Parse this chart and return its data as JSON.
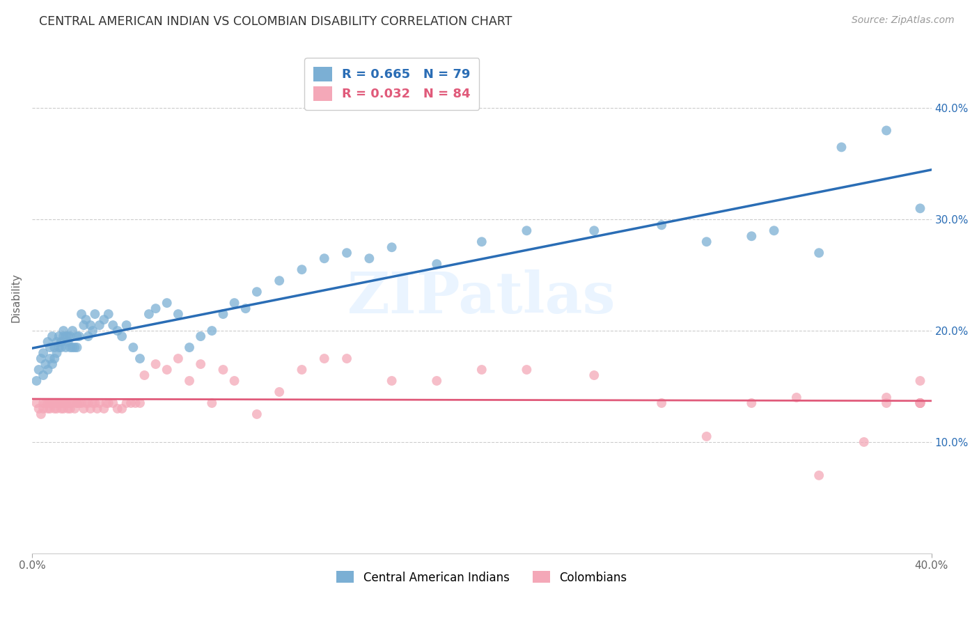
{
  "title": "CENTRAL AMERICAN INDIAN VS COLOMBIAN DISABILITY CORRELATION CHART",
  "source": "Source: ZipAtlas.com",
  "ylabel": "Disability",
  "xlim": [
    0.0,
    0.4
  ],
  "ylim": [
    0.0,
    0.46
  ],
  "xtick_vals": [
    0.0,
    0.4
  ],
  "xtick_labels": [
    "0.0%",
    "40.0%"
  ],
  "ytick_vals": [
    0.1,
    0.2,
    0.3,
    0.4
  ],
  "ytick_labels": [
    "10.0%",
    "20.0%",
    "30.0%",
    "40.0%"
  ],
  "blue_color": "#7bafd4",
  "blue_line_color": "#2a6db5",
  "pink_color": "#f4a8b8",
  "pink_line_color": "#e05a7a",
  "r_blue": 0.665,
  "n_blue": 79,
  "r_pink": 0.032,
  "n_pink": 84,
  "watermark_text": "ZIPatlas",
  "blue_scatter_x": [
    0.002,
    0.003,
    0.004,
    0.005,
    0.005,
    0.006,
    0.007,
    0.007,
    0.008,
    0.008,
    0.009,
    0.009,
    0.01,
    0.01,
    0.011,
    0.011,
    0.012,
    0.012,
    0.013,
    0.013,
    0.014,
    0.014,
    0.015,
    0.015,
    0.016,
    0.016,
    0.017,
    0.017,
    0.018,
    0.018,
    0.019,
    0.02,
    0.02,
    0.021,
    0.022,
    0.023,
    0.024,
    0.025,
    0.026,
    0.027,
    0.028,
    0.03,
    0.032,
    0.034,
    0.036,
    0.038,
    0.04,
    0.042,
    0.045,
    0.048,
    0.052,
    0.055,
    0.06,
    0.065,
    0.07,
    0.075,
    0.08,
    0.085,
    0.09,
    0.095,
    0.1,
    0.11,
    0.12,
    0.13,
    0.14,
    0.15,
    0.16,
    0.18,
    0.2,
    0.22,
    0.25,
    0.28,
    0.3,
    0.32,
    0.33,
    0.35,
    0.36,
    0.38,
    0.395
  ],
  "blue_scatter_y": [
    0.155,
    0.165,
    0.175,
    0.16,
    0.18,
    0.17,
    0.165,
    0.19,
    0.175,
    0.185,
    0.17,
    0.195,
    0.175,
    0.185,
    0.19,
    0.18,
    0.195,
    0.185,
    0.19,
    0.185,
    0.2,
    0.195,
    0.195,
    0.185,
    0.19,
    0.195,
    0.185,
    0.195,
    0.185,
    0.2,
    0.185,
    0.195,
    0.185,
    0.195,
    0.215,
    0.205,
    0.21,
    0.195,
    0.205,
    0.2,
    0.215,
    0.205,
    0.21,
    0.215,
    0.205,
    0.2,
    0.195,
    0.205,
    0.185,
    0.175,
    0.215,
    0.22,
    0.225,
    0.215,
    0.185,
    0.195,
    0.2,
    0.215,
    0.225,
    0.22,
    0.235,
    0.245,
    0.255,
    0.265,
    0.27,
    0.265,
    0.275,
    0.26,
    0.28,
    0.29,
    0.29,
    0.295,
    0.28,
    0.285,
    0.29,
    0.27,
    0.365,
    0.38,
    0.31
  ],
  "pink_scatter_x": [
    0.002,
    0.003,
    0.004,
    0.005,
    0.005,
    0.006,
    0.007,
    0.007,
    0.008,
    0.008,
    0.009,
    0.01,
    0.01,
    0.011,
    0.011,
    0.012,
    0.012,
    0.013,
    0.013,
    0.014,
    0.014,
    0.015,
    0.015,
    0.016,
    0.016,
    0.017,
    0.017,
    0.018,
    0.019,
    0.02,
    0.02,
    0.021,
    0.022,
    0.023,
    0.024,
    0.025,
    0.026,
    0.027,
    0.028,
    0.029,
    0.03,
    0.032,
    0.033,
    0.034,
    0.036,
    0.038,
    0.04,
    0.042,
    0.044,
    0.046,
    0.048,
    0.05,
    0.055,
    0.06,
    0.065,
    0.07,
    0.075,
    0.08,
    0.085,
    0.09,
    0.1,
    0.11,
    0.12,
    0.13,
    0.14,
    0.16,
    0.18,
    0.2,
    0.22,
    0.25,
    0.28,
    0.3,
    0.32,
    0.34,
    0.35,
    0.37,
    0.38,
    0.38,
    0.395,
    0.395,
    0.395,
    0.395,
    0.395,
    0.395
  ],
  "pink_scatter_y": [
    0.135,
    0.13,
    0.125,
    0.13,
    0.135,
    0.135,
    0.135,
    0.13,
    0.135,
    0.13,
    0.135,
    0.135,
    0.13,
    0.135,
    0.13,
    0.135,
    0.135,
    0.135,
    0.13,
    0.135,
    0.13,
    0.135,
    0.135,
    0.13,
    0.135,
    0.13,
    0.135,
    0.135,
    0.13,
    0.135,
    0.135,
    0.135,
    0.135,
    0.13,
    0.135,
    0.135,
    0.13,
    0.135,
    0.135,
    0.13,
    0.135,
    0.13,
    0.135,
    0.135,
    0.135,
    0.13,
    0.13,
    0.135,
    0.135,
    0.135,
    0.135,
    0.16,
    0.17,
    0.165,
    0.175,
    0.155,
    0.17,
    0.135,
    0.165,
    0.155,
    0.125,
    0.145,
    0.165,
    0.175,
    0.175,
    0.155,
    0.155,
    0.165,
    0.165,
    0.16,
    0.135,
    0.105,
    0.135,
    0.14,
    0.07,
    0.1,
    0.14,
    0.135,
    0.155,
    0.135,
    0.135,
    0.135,
    0.135,
    0.135
  ]
}
